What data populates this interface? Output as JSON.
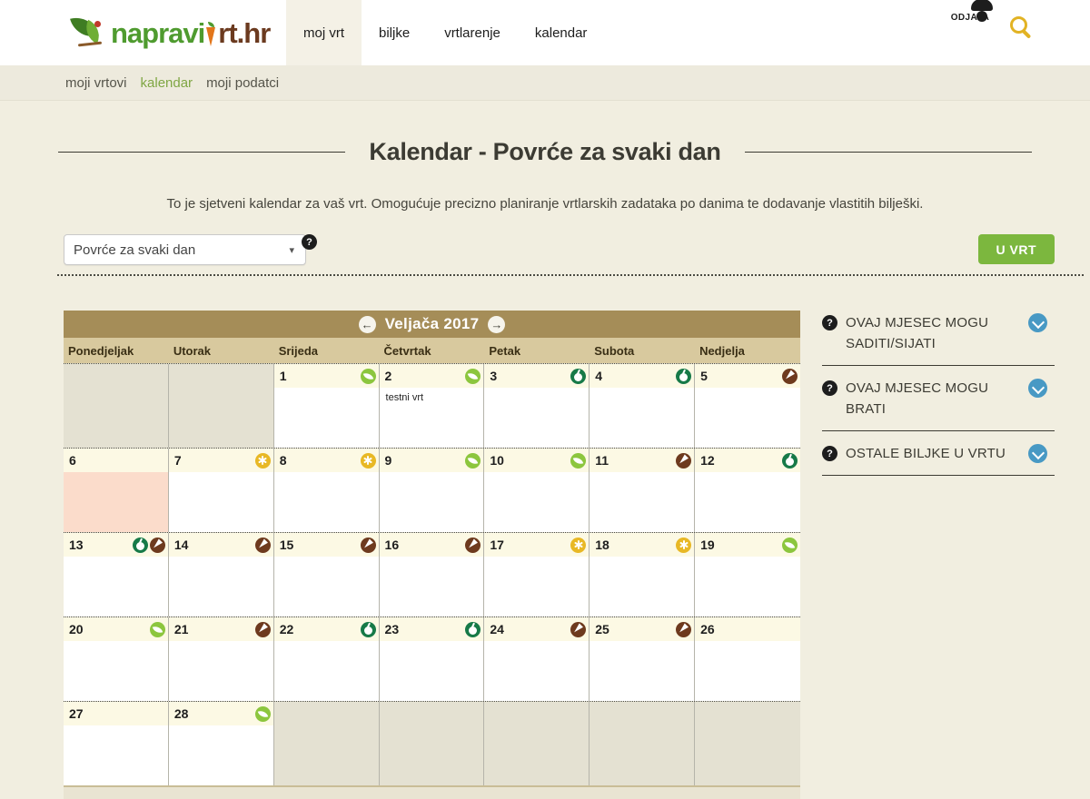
{
  "icons": {
    "prev_arrow": "←",
    "next_arrow": "→",
    "caret": "▾",
    "help": "?"
  },
  "colors": {
    "accent_green": "#7cb73e",
    "breadcrumb_active": "#7fa643",
    "month_bar": "#a58d58",
    "chevron_blue": "#4899c4",
    "icon_leaf": "#8cc63e",
    "icon_fruit": "#177a48",
    "icon_root": "#6e3a1e",
    "icon_flower": "#e8b825",
    "highlight_pink": "#fbdccb"
  },
  "header": {
    "logo": {
      "text_main": "napravi",
      "text_accent": "rt.hr"
    },
    "nav": [
      {
        "label": "moj vrt",
        "active": true
      },
      {
        "label": "biljke",
        "active": false
      },
      {
        "label": "vrtlarenje",
        "active": false
      },
      {
        "label": "kalendar",
        "active": false
      }
    ],
    "logout_label": "ODJAVA"
  },
  "breadcrumb": {
    "items": [
      {
        "label": "moji vrtovi",
        "active": false
      },
      {
        "label": "kalendar",
        "active": true
      },
      {
        "label": "moji podatci",
        "active": false
      }
    ]
  },
  "page": {
    "title": "Kalendar - Povrće za svaki dan",
    "description": "To je sjetveni kalendar za vaš vrt. Omogućuje precizno planiranje vrtlarskih zadataka po danima te dodavanje vlastitih bilješki.",
    "filter_selected": "Povrće za svaki dan",
    "action_button": "U VRT"
  },
  "calendar": {
    "month_title": "Veljača 2017",
    "day_headers": [
      "Ponedjeljak",
      "Utorak",
      "Srijeda",
      "Četvrtak",
      "Petak",
      "Subota",
      "Nedjelja"
    ],
    "weeks": [
      [
        {
          "empty": true
        },
        {
          "empty": true
        },
        {
          "day": 1,
          "icons": [
            "leaf"
          ]
        },
        {
          "day": 2,
          "icons": [
            "leaf"
          ],
          "note": "testni vrt"
        },
        {
          "day": 3,
          "icons": [
            "fruit"
          ]
        },
        {
          "day": 4,
          "icons": [
            "fruit"
          ]
        },
        {
          "day": 5,
          "icons": [
            "root"
          ]
        }
      ],
      [
        {
          "day": 6,
          "icons": [],
          "highlight": true
        },
        {
          "day": 7,
          "icons": [
            "flower"
          ]
        },
        {
          "day": 8,
          "icons": [
            "flower"
          ]
        },
        {
          "day": 9,
          "icons": [
            "leaf"
          ]
        },
        {
          "day": 10,
          "icons": [
            "leaf"
          ]
        },
        {
          "day": 11,
          "icons": [
            "root"
          ]
        },
        {
          "day": 12,
          "icons": [
            "fruit"
          ]
        }
      ],
      [
        {
          "day": 13,
          "icons": [
            "fruit",
            "root"
          ]
        },
        {
          "day": 14,
          "icons": [
            "root"
          ]
        },
        {
          "day": 15,
          "icons": [
            "root"
          ]
        },
        {
          "day": 16,
          "icons": [
            "root"
          ]
        },
        {
          "day": 17,
          "icons": [
            "flower"
          ]
        },
        {
          "day": 18,
          "icons": [
            "flower"
          ]
        },
        {
          "day": 19,
          "icons": [
            "leaf"
          ]
        }
      ],
      [
        {
          "day": 20,
          "icons": [
            "leaf"
          ]
        },
        {
          "day": 21,
          "icons": [
            "root"
          ]
        },
        {
          "day": 22,
          "icons": [
            "fruit"
          ]
        },
        {
          "day": 23,
          "icons": [
            "fruit"
          ]
        },
        {
          "day": 24,
          "icons": [
            "root"
          ]
        },
        {
          "day": 25,
          "icons": [
            "root"
          ]
        },
        {
          "day": 26,
          "icons": []
        }
      ],
      [
        {
          "day": 27,
          "icons": []
        },
        {
          "day": 28,
          "icons": [
            "leaf"
          ]
        },
        {
          "empty": true
        },
        {
          "empty": true
        },
        {
          "empty": true
        },
        {
          "empty": true
        },
        {
          "empty": true
        }
      ]
    ]
  },
  "sidebar": {
    "items": [
      {
        "label": "OVAJ MJESEC MOGU SADITI/SIJATI"
      },
      {
        "label": "OVAJ MJESEC MOGU BRATI"
      },
      {
        "label": "OSTALE BILJKE U VRTU"
      }
    ]
  }
}
